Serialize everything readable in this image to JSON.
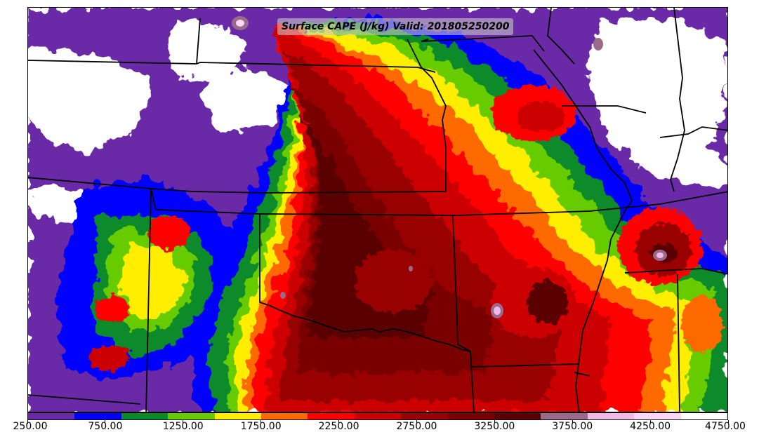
{
  "title": "Surface CAPE (J/kg) Valid: 201805250200",
  "colorbar": {
    "colors": [
      "#6a2aa8",
      "#0000ff",
      "#0a8a2a",
      "#66cc00",
      "#ffee00",
      "#ff6a00",
      "#ff0000",
      "#cc0000",
      "#990000",
      "#7a0000",
      "#5a0000",
      "#9a6a8a",
      "#f2b8e8",
      "#fbd6f5",
      "#ffffff"
    ],
    "tick_labels": [
      "250.00",
      "750.00",
      "1250.00",
      "1750.00",
      "2250.00",
      "2750.00",
      "3250.00",
      "3750.00",
      "4250.00",
      "4750.00"
    ]
  },
  "legend_unit": "J/kg"
}
